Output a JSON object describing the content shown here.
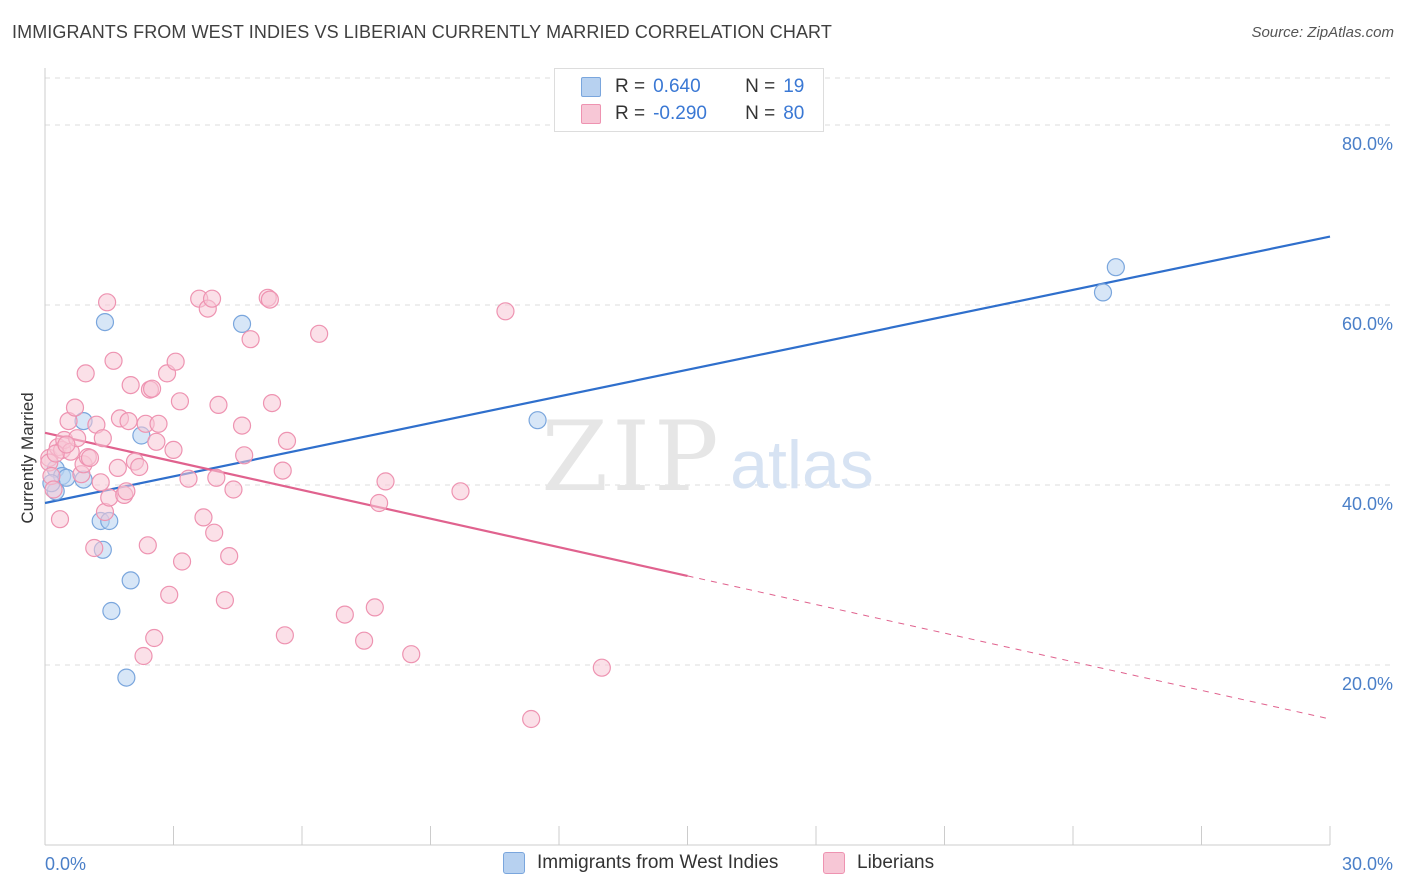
{
  "header": {
    "title": "IMMIGRANTS FROM WEST INDIES VS LIBERIAN CURRENTLY MARRIED CORRELATION CHART",
    "source": "Source: ZipAtlas.com"
  },
  "legend": {
    "series1": {
      "r_label": "R =",
      "r_value": "0.640",
      "n_label": "N =",
      "n_value": "19"
    },
    "series2": {
      "r_label": "R =",
      "r_value": "-0.290",
      "n_label": "N =",
      "n_value": "80"
    }
  },
  "watermark": {
    "zip": "ZIP",
    "atlas": "atlas"
  },
  "colors": {
    "blue_fill": "#b7d1f0",
    "blue_stroke": "#7aa6dd",
    "blue_line": "#2f6fcc",
    "pink_fill": "#f7c7d6",
    "pink_stroke": "#ee93b1",
    "pink_line": "#e0628e",
    "axis_text": "#4a7fc8",
    "grid": "#dddddd"
  },
  "chart_data": {
    "type": "scatter",
    "title": "IMMIGRANTS FROM WEST INDIES VS LIBERIAN CURRENTLY MARRIED CORRELATION CHART",
    "xlabel": "",
    "ylabel": "Currently Married",
    "xlim": [
      0,
      30
    ],
    "ylim": [
      0,
      85
    ],
    "x_tick_labels": [
      "0.0%",
      "30.0%"
    ],
    "y_ticks": [
      20,
      40,
      60,
      80
    ],
    "y_tick_labels": [
      "20.0%",
      "40.0%",
      "60.0%",
      "80.0%"
    ],
    "grid": true,
    "series": [
      {
        "name": "Immigrants from West Indies",
        "color": "blue",
        "trend": {
          "x": [
            0,
            30
          ],
          "y": [
            38.0,
            67.6
          ],
          "dashed_from": null
        },
        "points": [
          {
            "x": 0.25,
            "y": 39.3
          },
          {
            "x": 0.25,
            "y": 41.8
          },
          {
            "x": 0.4,
            "y": 41.0
          },
          {
            "x": 0.9,
            "y": 40.6
          },
          {
            "x": 0.9,
            "y": 47.1
          },
          {
            "x": 1.3,
            "y": 36.0
          },
          {
            "x": 1.35,
            "y": 32.8
          },
          {
            "x": 1.5,
            "y": 36.0
          },
          {
            "x": 1.4,
            "y": 58.1
          },
          {
            "x": 1.55,
            "y": 26.0
          },
          {
            "x": 1.9,
            "y": 18.6
          },
          {
            "x": 2.0,
            "y": 29.4
          },
          {
            "x": 2.25,
            "y": 45.5
          },
          {
            "x": 4.6,
            "y": 57.9
          },
          {
            "x": 11.5,
            "y": 47.2
          },
          {
            "x": 24.7,
            "y": 61.4
          },
          {
            "x": 25.0,
            "y": 64.2
          },
          {
            "x": 0.5,
            "y": 40.8
          },
          {
            "x": 0.15,
            "y": 40.2
          }
        ]
      },
      {
        "name": "Liberians",
        "color": "pink",
        "trend": {
          "x": [
            0,
            30
          ],
          "y": [
            45.8,
            14.0
          ],
          "dashed_from": 15.0
        },
        "points": [
          {
            "x": 0.1,
            "y": 43.0
          },
          {
            "x": 0.1,
            "y": 42.5
          },
          {
            "x": 0.15,
            "y": 41.0
          },
          {
            "x": 0.2,
            "y": 39.5
          },
          {
            "x": 0.3,
            "y": 44.2
          },
          {
            "x": 0.35,
            "y": 36.2
          },
          {
            "x": 0.4,
            "y": 43.9
          },
          {
            "x": 0.45,
            "y": 45.0
          },
          {
            "x": 0.55,
            "y": 47.1
          },
          {
            "x": 0.6,
            "y": 43.7
          },
          {
            "x": 0.7,
            "y": 48.6
          },
          {
            "x": 0.75,
            "y": 45.2
          },
          {
            "x": 0.85,
            "y": 41.2
          },
          {
            "x": 0.9,
            "y": 42.3
          },
          {
            "x": 0.95,
            "y": 52.4
          },
          {
            "x": 1.0,
            "y": 43.1
          },
          {
            "x": 1.05,
            "y": 43.0
          },
          {
            "x": 1.15,
            "y": 33.0
          },
          {
            "x": 1.2,
            "y": 46.7
          },
          {
            "x": 1.3,
            "y": 40.3
          },
          {
            "x": 1.35,
            "y": 45.2
          },
          {
            "x": 1.4,
            "y": 37.0
          },
          {
            "x": 1.45,
            "y": 60.3
          },
          {
            "x": 1.5,
            "y": 38.6
          },
          {
            "x": 1.6,
            "y": 53.8
          },
          {
            "x": 1.7,
            "y": 41.9
          },
          {
            "x": 1.75,
            "y": 47.4
          },
          {
            "x": 1.85,
            "y": 38.9
          },
          {
            "x": 1.9,
            "y": 39.3
          },
          {
            "x": 1.95,
            "y": 47.1
          },
          {
            "x": 2.0,
            "y": 51.1
          },
          {
            "x": 2.1,
            "y": 42.6
          },
          {
            "x": 2.2,
            "y": 42.0
          },
          {
            "x": 2.3,
            "y": 21.0
          },
          {
            "x": 2.35,
            "y": 46.8
          },
          {
            "x": 2.4,
            "y": 33.3
          },
          {
            "x": 2.45,
            "y": 50.6
          },
          {
            "x": 2.5,
            "y": 50.7
          },
          {
            "x": 2.55,
            "y": 23.0
          },
          {
            "x": 2.6,
            "y": 44.8
          },
          {
            "x": 2.65,
            "y": 46.8
          },
          {
            "x": 2.85,
            "y": 52.4
          },
          {
            "x": 2.9,
            "y": 27.8
          },
          {
            "x": 3.0,
            "y": 43.9
          },
          {
            "x": 3.05,
            "y": 53.7
          },
          {
            "x": 3.15,
            "y": 49.3
          },
          {
            "x": 3.2,
            "y": 31.5
          },
          {
            "x": 3.35,
            "y": 40.7
          },
          {
            "x": 3.6,
            "y": 60.7
          },
          {
            "x": 3.7,
            "y": 36.4
          },
          {
            "x": 3.8,
            "y": 59.6
          },
          {
            "x": 3.9,
            "y": 60.7
          },
          {
            "x": 3.95,
            "y": 34.7
          },
          {
            "x": 4.0,
            "y": 40.8
          },
          {
            "x": 4.05,
            "y": 48.9
          },
          {
            "x": 4.2,
            "y": 27.2
          },
          {
            "x": 4.3,
            "y": 32.1
          },
          {
            "x": 4.4,
            "y": 39.5
          },
          {
            "x": 4.6,
            "y": 46.6
          },
          {
            "x": 4.65,
            "y": 43.3
          },
          {
            "x": 4.8,
            "y": 56.2
          },
          {
            "x": 5.2,
            "y": 60.8
          },
          {
            "x": 5.25,
            "y": 60.6
          },
          {
            "x": 5.3,
            "y": 49.1
          },
          {
            "x": 5.55,
            "y": 41.6
          },
          {
            "x": 5.6,
            "y": 23.3
          },
          {
            "x": 5.65,
            "y": 44.9
          },
          {
            "x": 6.4,
            "y": 56.8
          },
          {
            "x": 7.0,
            "y": 25.6
          },
          {
            "x": 7.45,
            "y": 22.7
          },
          {
            "x": 7.7,
            "y": 26.4
          },
          {
            "x": 7.8,
            "y": 38.0
          },
          {
            "x": 7.95,
            "y": 40.4
          },
          {
            "x": 8.55,
            "y": 21.2
          },
          {
            "x": 9.7,
            "y": 39.3
          },
          {
            "x": 10.75,
            "y": 59.3
          },
          {
            "x": 11.35,
            "y": 14.0
          },
          {
            "x": 13.0,
            "y": 19.7
          },
          {
            "x": 0.25,
            "y": 43.5
          },
          {
            "x": 0.5,
            "y": 44.5
          }
        ]
      }
    ]
  }
}
